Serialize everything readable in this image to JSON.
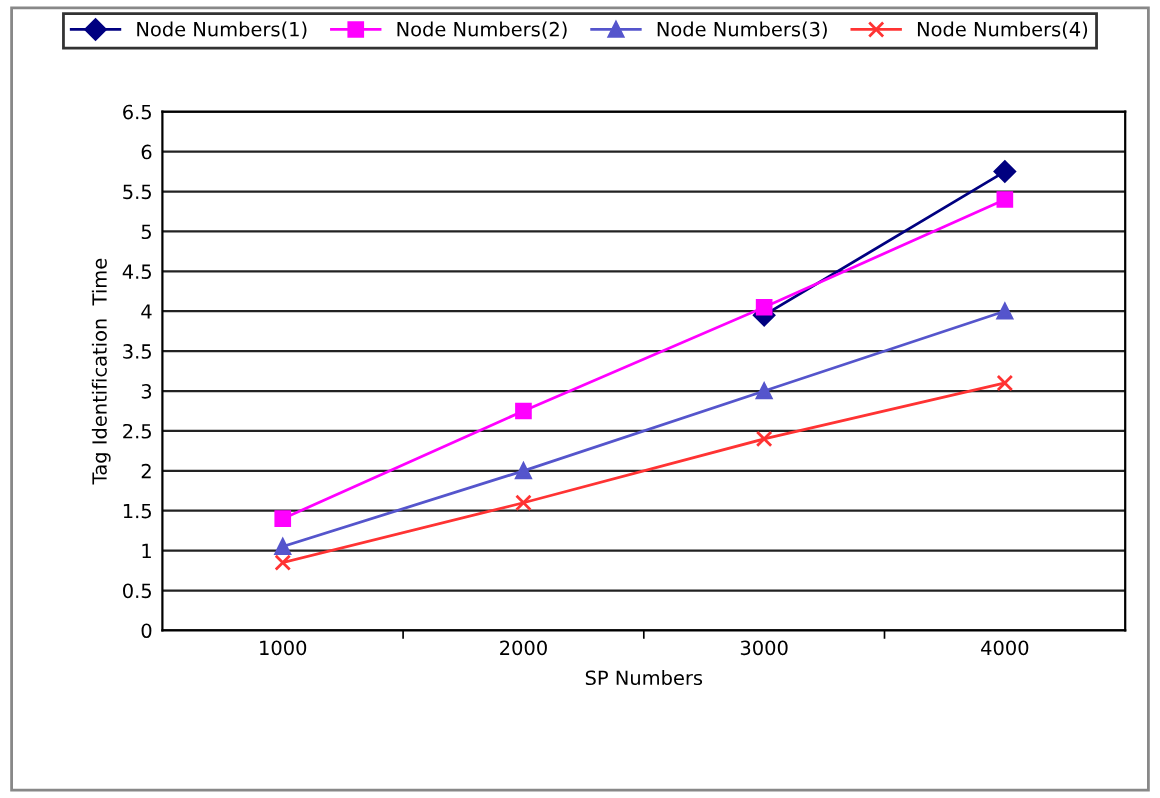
{
  "chart_data": {
    "type": "line",
    "xlabel": "SP Numbers",
    "ylabel": "Tag Identification  Time",
    "categories": [
      "1000",
      "2000",
      "3000",
      "4000"
    ],
    "series": [
      {
        "name": "Node Numbers(1)",
        "color": "#000080",
        "marker": "diamond",
        "values": [
          null,
          null,
          3.95,
          5.75
        ]
      },
      {
        "name": "Node Numbers(2)",
        "color": "#ff00ff",
        "marker": "square",
        "values": [
          1.4,
          2.75,
          4.05,
          5.4
        ]
      },
      {
        "name": "Node Numbers(3)",
        "color": "#5555cc",
        "marker": "triangle",
        "values": [
          1.05,
          2.0,
          3.0,
          4.0
        ]
      },
      {
        "name": "Node Numbers(4)",
        "color": "#ff3333",
        "marker": "cross",
        "values": [
          0.85,
          1.6,
          2.4,
          3.1
        ]
      }
    ],
    "ylim": [
      0,
      6.5
    ],
    "yticks": [
      0,
      0.5,
      1,
      1.5,
      2,
      2.5,
      3,
      3.5,
      4,
      4.5,
      5,
      5.5,
      6,
      6.5
    ],
    "grid": "y",
    "legend": "top"
  }
}
